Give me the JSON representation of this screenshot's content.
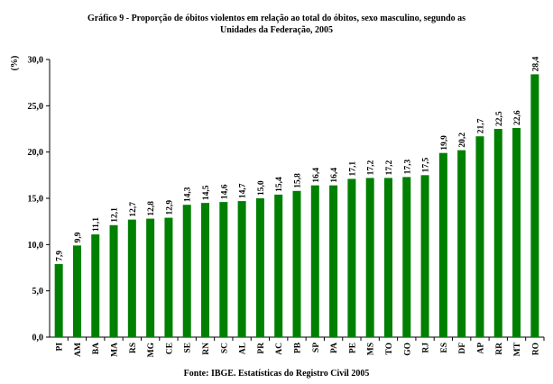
{
  "chart_data": {
    "type": "bar",
    "title": "Gráfico 9 - Proporção de óbitos violentos em relação ao total do óbitos, sexo masculino, segundo as",
    "title_line2": "Unidades da Federação, 2005",
    "ylabel": "(%)",
    "xlabel": "",
    "source": "Fonte: IBGE. Estatísticas do Registro Civil 2005",
    "ylim": [
      0,
      30
    ],
    "yticks": [
      0,
      5,
      10,
      15,
      20,
      25,
      30
    ],
    "ytick_labels": [
      "0,0",
      "5,0",
      "10,0",
      "15,0",
      "20,0",
      "25,0",
      "30,0"
    ],
    "categories": [
      "PI",
      "AM",
      "BA",
      "MA",
      "RS",
      "MG",
      "CE",
      "SE",
      "RN",
      "SC",
      "AL",
      "PR",
      "AC",
      "PB",
      "SP",
      "PA",
      "PE",
      "MS",
      "TO",
      "GO",
      "RJ",
      "ES",
      "DF",
      "AP",
      "RR",
      "MT",
      "RO"
    ],
    "values": [
      7.9,
      9.9,
      11.1,
      12.1,
      12.7,
      12.8,
      12.9,
      14.3,
      14.5,
      14.6,
      14.7,
      15.0,
      15.4,
      15.8,
      16.4,
      16.4,
      17.1,
      17.2,
      17.2,
      17.3,
      17.5,
      19.9,
      20.2,
      21.7,
      22.5,
      22.6,
      28.4
    ],
    "value_labels": [
      "7,9",
      "9,9",
      "11,1",
      "12,1",
      "12,7",
      "12,8",
      "12,9",
      "14,3",
      "14,5",
      "14,6",
      "14,7",
      "15,0",
      "15,4",
      "15,8",
      "16,4",
      "16,4",
      "17,1",
      "17,2",
      "17,2",
      "17,3",
      "17,5",
      "19,9",
      "20,2",
      "21,7",
      "22,5",
      "22,6",
      "28,4"
    ],
    "bar_color": "#008000",
    "grid": false,
    "legend": "none"
  }
}
